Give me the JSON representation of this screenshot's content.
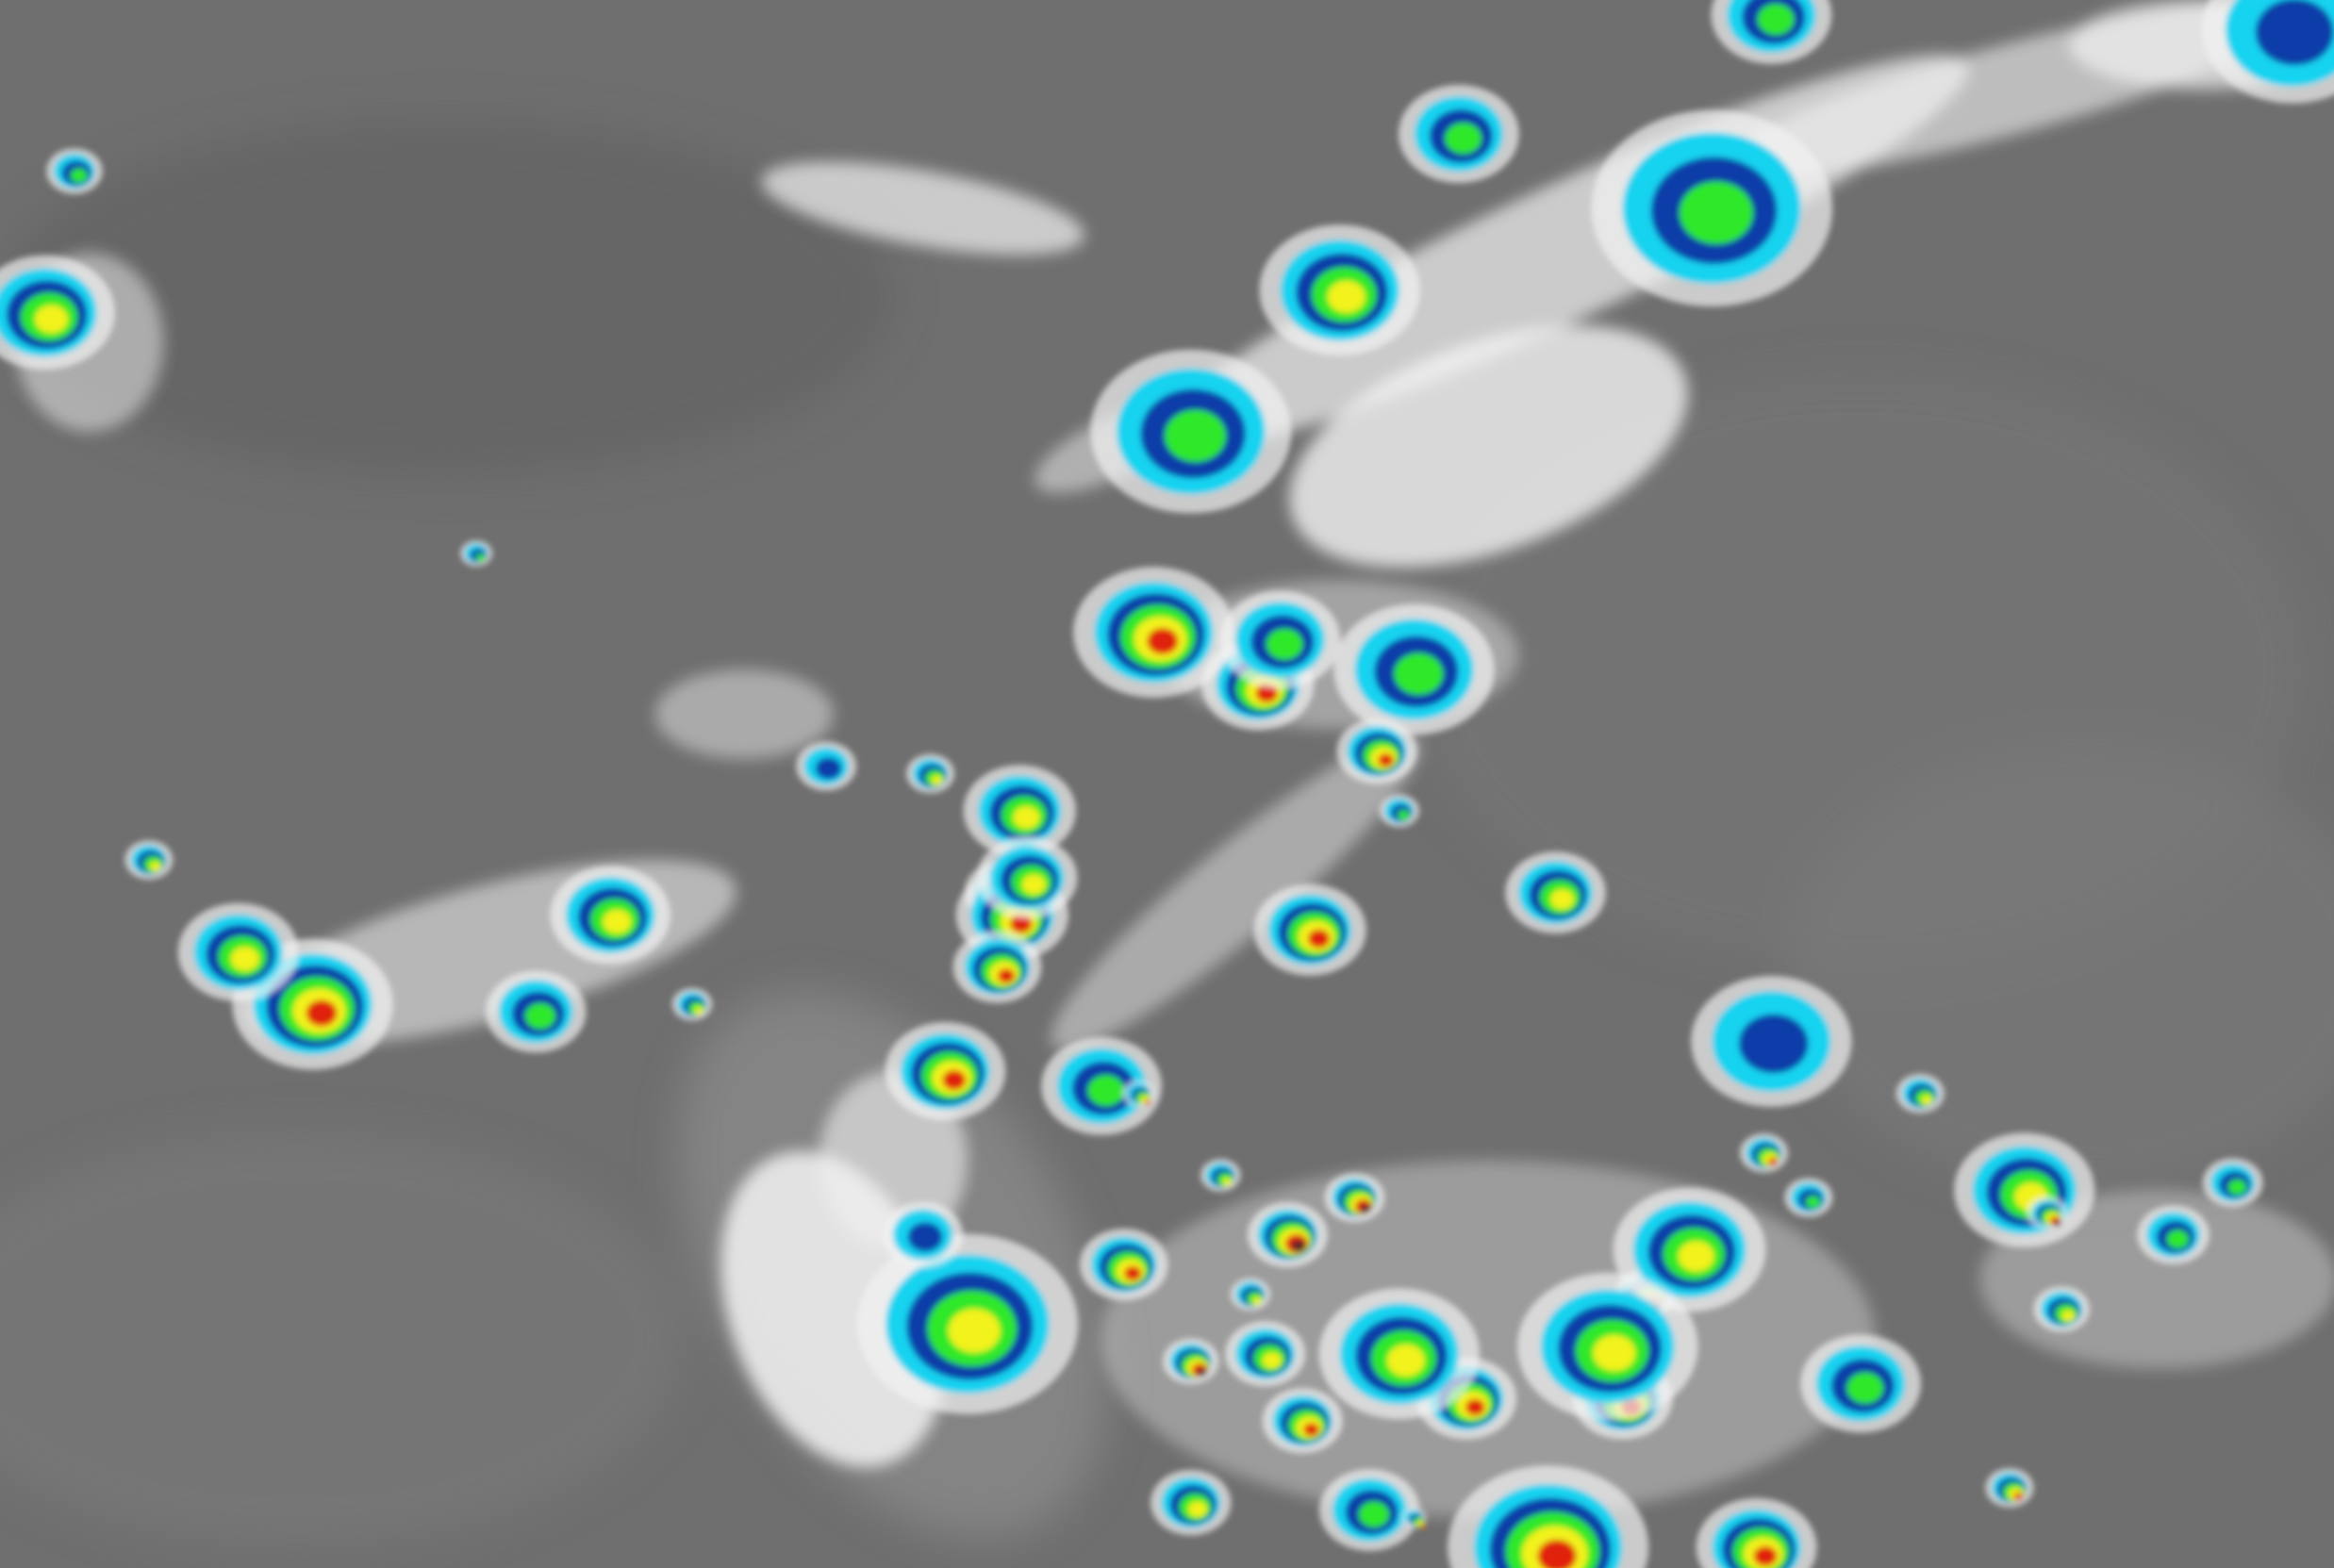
{
  "image": {
    "kind": "infrared-satellite-imagery",
    "palette": {
      "background": "#6f6f6f",
      "cloud_white": "#f2f2f2",
      "cyan": "#19d3f0",
      "blue": "#0a3da8",
      "green": "#2ee82a",
      "yellow": "#f2f21a",
      "red": "#e0200f",
      "core": "#3a2a2a"
    }
  }
}
